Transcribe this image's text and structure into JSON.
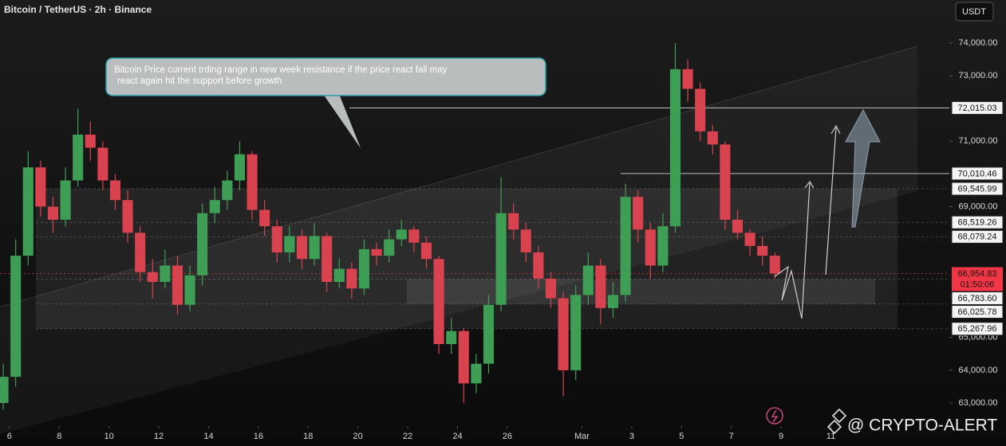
{
  "chart_data": {
    "type": "candlestick",
    "title": "Bitcoin / TetherUS · 2h · Binance",
    "currency": "USDT",
    "annotation": [
      "Bitcoin Price current trding range in new week resistance if the price react fall may",
      "react again hit the support before growth"
    ],
    "watermark": "@ CRYPTO-ALERT",
    "up_color": "#3f9e55",
    "down_color": "#d9434f",
    "xlim": [
      5.62,
      43.76
    ],
    "xticks": [
      6,
      8,
      10,
      12,
      14,
      16,
      18,
      20,
      22,
      24,
      26,
      {
        "value": 29,
        "label": "Mar"
      },
      {
        "value": 31,
        "label": "3"
      },
      {
        "value": 33,
        "label": "5"
      },
      {
        "value": 35,
        "label": "7"
      },
      {
        "value": 37,
        "label": "9"
      },
      {
        "value": 39,
        "label": "11"
      }
    ],
    "ylim": [
      62294,
      75314
    ],
    "yticks": [
      {
        "value": 74000,
        "label": "74,000.00"
      },
      {
        "value": 73000,
        "label": "73,000.00"
      },
      {
        "value": 71000,
        "label": "71,000.00"
      },
      {
        "value": 69000,
        "label": "69,000.00"
      },
      {
        "value": 65000,
        "label": "65,000.00"
      },
      {
        "value": 64000,
        "label": "64,000.00"
      },
      {
        "value": 63000,
        "label": "63,000.00"
      }
    ],
    "levels": [
      {
        "value": 72015.03,
        "label": "72,015.03"
      },
      {
        "value": 70010.46,
        "label": "70,010.46"
      },
      {
        "value": 69545.99,
        "label": "69,545.99"
      },
      {
        "value": 68519.26,
        "label": "68,519.26"
      },
      {
        "value": 68079.24,
        "label": "68,079.24"
      },
      {
        "value": 66783.6,
        "label": "66,783.60"
      },
      {
        "value": 66025.78,
        "label": "66,025.78"
      },
      {
        "value": 65267.96,
        "label": "65,267.96"
      }
    ],
    "current_price": {
      "value": 66954.83,
      "label": "66,954.83",
      "countdown": "01:50:06",
      "color": "#f23645"
    },
    "x": [
      5.75,
      6.25,
      6.75,
      7.25,
      7.75,
      8.25,
      8.75,
      9.25,
      9.75,
      10.25,
      10.75,
      11.25,
      11.75,
      12.25,
      12.75,
      13.25,
      13.75,
      14.25,
      14.75,
      15.25,
      15.75,
      16.25,
      16.75,
      17.25,
      17.75,
      18.25,
      18.75,
      19.25,
      19.75,
      20.25,
      20.75,
      21.25,
      21.75,
      22.25,
      22.75,
      23.25,
      23.75,
      24.25,
      24.75,
      25.25,
      25.75,
      26.25,
      26.75,
      27.25,
      27.75,
      28.25,
      28.75,
      29.25,
      29.75,
      30.25,
      30.75,
      31.25,
      31.75,
      32.25,
      32.75,
      33.25,
      33.75,
      34.25,
      34.75,
      35.25,
      35.75,
      36.25,
      36.75
    ],
    "open": [
      63000,
      63800,
      67500,
      70200,
      69000,
      68600,
      69800,
      71200,
      70800,
      69800,
      69200,
      68200,
      67000,
      66700,
      67200,
      66000,
      66900,
      68800,
      69200,
      69800,
      70600,
      68900,
      68400,
      67600,
      68100,
      67400,
      68100,
      66700,
      67100,
      66500,
      67700,
      67500,
      68000,
      68300,
      67900,
      67400,
      64800,
      65200,
      63600,
      64200,
      66000,
      68800,
      68300,
      67600,
      66800,
      66200,
      64000,
      66300,
      67200,
      65900,
      66300,
      69300,
      68300,
      67200,
      68400,
      73200,
      72600,
      71300,
      70900,
      68600,
      68200,
      67800,
      67500
    ],
    "high": [
      64200,
      68000,
      70700,
      70400,
      69300,
      70200,
      72000,
      71600,
      71000,
      70000,
      69500,
      68400,
      67400,
      67700,
      67500,
      67200,
      69100,
      69600,
      70100,
      71000,
      70700,
      69200,
      68600,
      68400,
      68300,
      68500,
      68200,
      67400,
      67300,
      68000,
      67900,
      68300,
      68600,
      68400,
      68100,
      67500,
      65600,
      65300,
      64500,
      66300,
      69900,
      69100,
      68500,
      67800,
      67000,
      66400,
      66600,
      67600,
      67400,
      66700,
      69700,
      69500,
      68500,
      68800,
      74000,
      73500,
      72800,
      71500,
      71000,
      68900,
      68300,
      68100,
      67600
    ],
    "low": [
      62800,
      63500,
      67200,
      68700,
      68200,
      68400,
      69600,
      70400,
      69500,
      68900,
      67900,
      66700,
      66200,
      66500,
      65700,
      65800,
      66600,
      68500,
      68900,
      69500,
      68600,
      68100,
      67300,
      67300,
      67100,
      67200,
      66400,
      66500,
      66200,
      66300,
      67200,
      67300,
      67800,
      67600,
      67100,
      64500,
      64500,
      63000,
      63300,
      63900,
      65800,
      68000,
      67300,
      66500,
      65900,
      63200,
      63700,
      66000,
      65400,
      65600,
      66100,
      67900,
      66800,
      67000,
      68200,
      72200,
      71000,
      70600,
      68300,
      68000,
      67500,
      67200,
      66800
    ],
    "close": [
      63800,
      67500,
      70200,
      69000,
      68600,
      69800,
      71200,
      70800,
      69800,
      69200,
      68200,
      67000,
      66700,
      67200,
      66000,
      66900,
      68800,
      69200,
      69800,
      70600,
      68900,
      68400,
      67600,
      68100,
      67400,
      68100,
      66700,
      67100,
      66500,
      67700,
      67500,
      68000,
      68300,
      67900,
      67400,
      64800,
      65200,
      63600,
      64200,
      66000,
      68800,
      68300,
      67600,
      66800,
      66200,
      64000,
      66300,
      67200,
      65900,
      66300,
      69300,
      68300,
      67200,
      68400,
      73200,
      72600,
      71300,
      70900,
      68600,
      68200,
      67800,
      67500,
      66954.83
    ]
  }
}
